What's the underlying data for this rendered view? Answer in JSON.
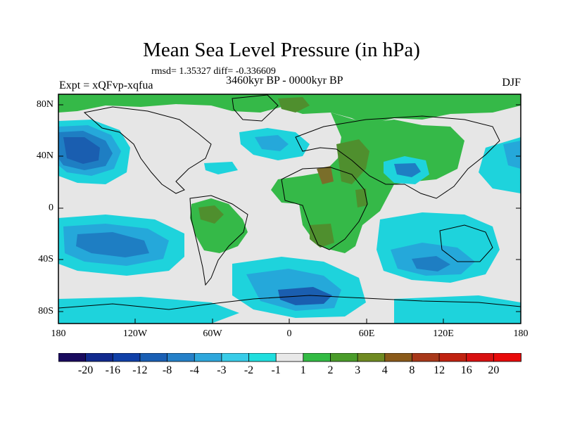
{
  "title": "Mean Sea Level Pressure (in hPa)",
  "stats": "rmsd= 1.35327  diff= -0.336609",
  "experiment": "Expt = xQFvp-xqfua",
  "period": "3460kyr BP - 0000kyr BP",
  "season": "DJF",
  "lat_labels": [
    "80N",
    "40N",
    "0",
    "40S",
    "80S"
  ],
  "lon_labels": [
    "180",
    "120W",
    "60W",
    "0",
    "60E",
    "120E",
    "180"
  ],
  "colorbar": {
    "labels": [
      "-20",
      "-16",
      "-12",
      "-8",
      "-4",
      "-3",
      "-2",
      "-1",
      "1",
      "2",
      "3",
      "4",
      "8",
      "12",
      "16",
      "20"
    ],
    "colors": [
      "#1a0b5e",
      "#122a8e",
      "#1040a8",
      "#1a5fb4",
      "#2580c8",
      "#2ea7dc",
      "#38cce8",
      "#20dede",
      "#e8e8e8",
      "#33bb44",
      "#4a9c2a",
      "#6f8a22",
      "#8a5a1a",
      "#a8381a",
      "#c02210",
      "#d81010",
      "#e80a0a"
    ]
  },
  "field_colors": {
    "neutral": "#e6e6e6",
    "pos1": "#35b948",
    "pos2": "#4f8f2e",
    "pos3": "#7a6e2a",
    "neg1": "#1ed3dc",
    "neg2": "#25a8da",
    "neg3": "#1e7ec3",
    "neg4": "#1a5eb0",
    "neg5": "#1242a2"
  }
}
